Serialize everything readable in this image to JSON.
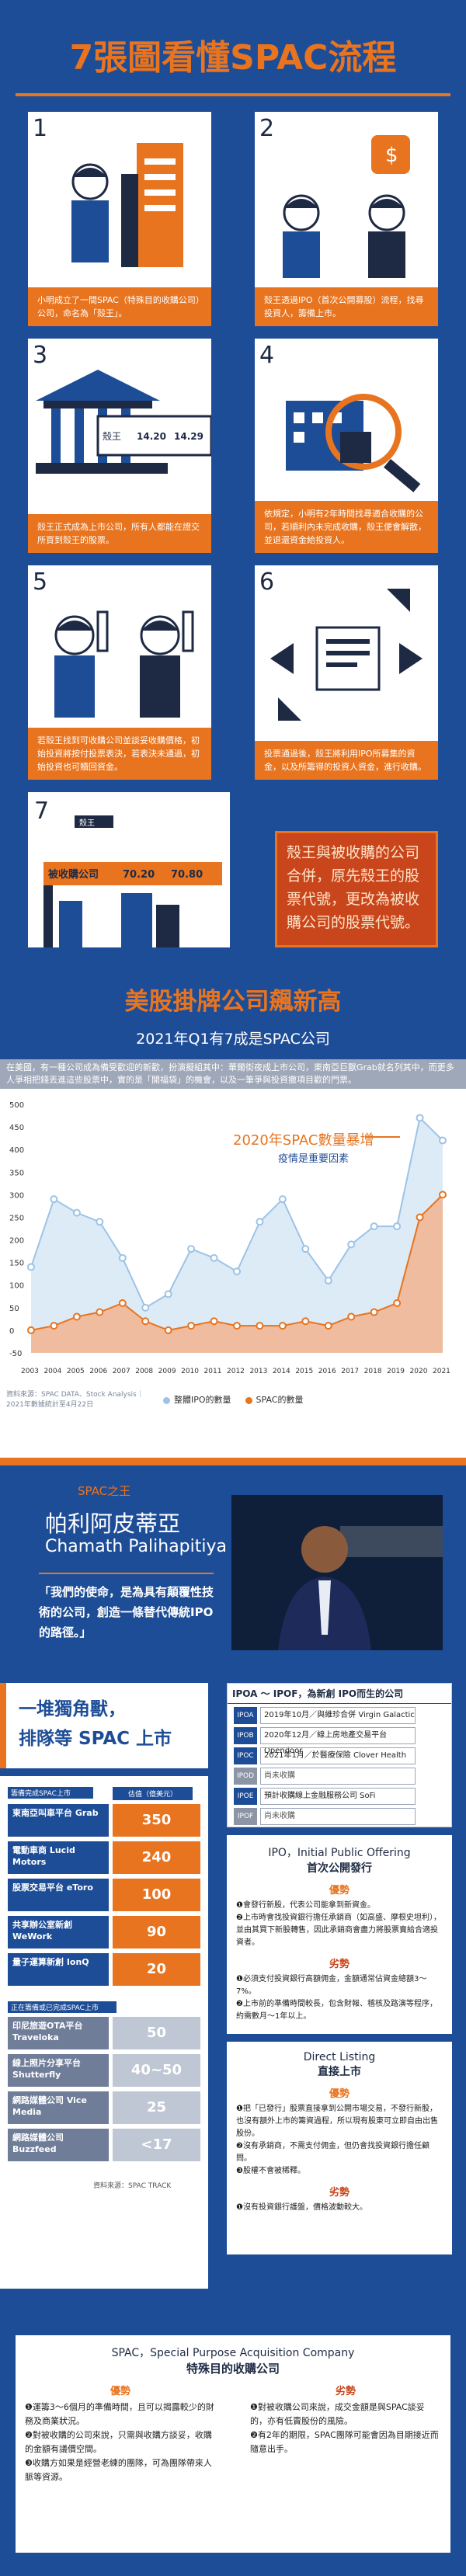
{
  "title": "7張圖看懂SPAC流程",
  "steps": [
    {
      "num": "1",
      "caption": "小明成立了一間SPAC（特殊目的收購公司）公司，命名為「殼王」。"
    },
    {
      "num": "2",
      "caption": "殼王透過IPO（首次公開募股）流程，找尋投資人，籌備上市。"
    },
    {
      "num": "3",
      "caption": "殼王正式成為上市公司，所有人都能在證交所買到殼王的股票。",
      "ticker": "殼王",
      "price1": "14.20",
      "price2": "14.29"
    },
    {
      "num": "4",
      "caption": "依規定，小明有2年時間找尋適合收購的公司，若順利內未完成收購，殼王便會解散，並退還資金給投資人。"
    },
    {
      "num": "5",
      "caption": "若殼王找到可收購公司並談妥收購價格，初始投資將按付投票表決，若表決未通過，初始投資也可贖回資金。"
    },
    {
      "num": "6",
      "caption": "投票通過後，殼王將利用IPO所募集的資金，以及所籌得的投資人資金，進行收購。"
    },
    {
      "num": "7",
      "ticker_old": "殼王",
      "ticker_new": "被收購公司",
      "price1": "70.20",
      "price2": "70.80"
    }
  ],
  "step7_callout": "殼王與被收購的公司合併，原先殼王的股票代號，更改為被收購公司的股票代號。",
  "section2": {
    "title": "美股掛牌公司飆新高",
    "subtitle": "2021年Q1有7成是SPAC公司",
    "intro": "在美國，有一種公司成為備受歡迎的新歡，扮演擬組其中：華爾街夜成上市公司，東南亞巨獸Grab就名列其中，而更多人爭相把錢丟進這些股票中，實的是「開福袋」的機會，以及一筆爭與投資撤項目歡的門票。"
  },
  "chart_data": {
    "type": "line",
    "x": [
      2003,
      2004,
      2005,
      2006,
      2007,
      2008,
      2009,
      2010,
      2011,
      2012,
      2013,
      2014,
      2015,
      2016,
      2017,
      2018,
      2019,
      2020,
      2021
    ],
    "series": [
      {
        "name": "整體IPO的數量",
        "values": [
          140,
          290,
          260,
          240,
          160,
          50,
          80,
          180,
          160,
          130,
          240,
          290,
          180,
          110,
          190,
          230,
          230,
          470,
          420
        ]
      },
      {
        "name": "SPAC的數量",
        "values": [
          0,
          10,
          30,
          40,
          60,
          20,
          0,
          10,
          20,
          10,
          10,
          10,
          20,
          10,
          30,
          40,
          60,
          250,
          300
        ]
      }
    ],
    "ylim": [
      0,
      500
    ],
    "yticks": [
      "500",
      "450",
      "400",
      "350",
      "300",
      "250",
      "200",
      "150",
      "100",
      "50",
      "0",
      "-50"
    ],
    "annotation_title": "2020年SPAC數量暴增",
    "annotation_sub": "疫情是重要因素",
    "source": "資料來源：SPAC DATA、Stock Analysis｜2021年數據統計至4月22日"
  },
  "person": {
    "subtitle": "SPAC之王",
    "name": "帕利阿皮蒂亞",
    "en_name": "Chamath Palihapitiya",
    "quote": "「我們的使命，是為具有顛覆性技術的公司，創造一條替代傳統IPO的路徑。」"
  },
  "unicorn": {
    "title1": "一堆獨角獸，",
    "title2": "排隊等 SPAC 上市",
    "cat_done": "籌備完成SPAC上市",
    "cat_pending": "正在籌備或已完成SPAC上市",
    "col_header": "估值（億美元）",
    "rows": [
      {
        "name": "東南亞叫車平台 Grab",
        "value": "350",
        "gray": false
      },
      {
        "name": "電動車商 Lucid Motors",
        "value": "240",
        "gray": false
      },
      {
        "name": "股票交易平台 eToro",
        "value": "100",
        "gray": false
      },
      {
        "name": "共享辦公室新創 WeWork",
        "value": "90",
        "gray": false
      },
      {
        "name": "量子運算新創 IonQ",
        "value": "20",
        "gray": false
      },
      {
        "name": "印尼旅遊OTA平台 Traveloka",
        "value": "50",
        "gray": true
      },
      {
        "name": "線上照片分享平台 Shutterfly",
        "value": "40~50",
        "gray": true
      },
      {
        "name": "網路媒體公司 Vice Media",
        "value": "25",
        "gray": true
      },
      {
        "name": "網路媒體公司 Buzzfeed",
        "value": "<17",
        "gray": true
      }
    ],
    "source": "資料來源：SPAC TRACK"
  },
  "timeline": {
    "header": "IPOA ～ IPOF，為新創 IPO而生的公司",
    "rows": [
      {
        "tag": "IPOA",
        "text": "2019年10月／與維珍合併 Virgin Galactic",
        "gray": false
      },
      {
        "tag": "IPOB",
        "text": "2020年12月／線上房地產交易平台 Opendoor",
        "gray": false
      },
      {
        "tag": "IPOC",
        "text": "2021年1月／於醫療保險 Clover Health",
        "gray": false
      },
      {
        "tag": "IPOD",
        "text": "尚未收購",
        "gray": true
      },
      {
        "tag": "IPOE",
        "text": "預計收購線上金融服務公司 SoFi",
        "gray": false
      },
      {
        "tag": "IPOF",
        "text": "尚未收購",
        "gray": true
      }
    ]
  },
  "ipo": {
    "title": "IPO，Initial Public Offering",
    "subtitle": "首次公開發行",
    "pros_label": "優勢",
    "pros": [
      "❶會發行新股，代表公司能拿到新資金。",
      "❷上市時會找投資銀行擔任承銷商（如高盛、摩根史坦利），並由其買下新股轉售，因此承銷商會盡力將股票賣給合適投資者。"
    ],
    "cons_label": "劣勢",
    "cons": [
      "❶必須支付投資銀行高額佣金，金額通常佔資金總額3～7%。",
      "❷上市前的準備時間較長，包含財報、稽核及路演等程序，約需數月～1年以上。"
    ]
  },
  "dl": {
    "title": "Direct Listing",
    "subtitle": "直接上市",
    "pros_label": "優勢",
    "pros": [
      "❶把「已發行」股票直接拿到公開市場交易，不發行新股，也沒有額外上市的籌資過程，所以現有股東可立即自由出售股份。",
      "❷沒有承銷商，不需支付佣金，但仍會找投資銀行擔任顧問。",
      "❸股權不會被稀釋。"
    ],
    "cons_label": "劣勢",
    "cons": [
      "❶沒有投資銀行護盤，價格波動較大。"
    ]
  },
  "spac": {
    "title": "SPAC，Special Purpose Acquisition Company",
    "subtitle": "特殊目的收購公司",
    "pros_label": "優勢",
    "pros": [
      "❶運籌3～6個月的準備時間，且可以揭露較少的財務及商業狀況。",
      "❷對被收購的公司來說，只需與收購方談妥，收購的金額有議價空間。",
      "❸收購方如果是經營老練的團隊，可為團隊帶來人脈等資源。"
    ],
    "cons_label": "劣勢",
    "cons": [
      "❶對被收購公司來說，成交金額是與SPAC談妥的，亦有低賣股份的風險。",
      "❷有2年的期限，SPAC團隊可能會因為目期接近而隨意出手。"
    ]
  }
}
